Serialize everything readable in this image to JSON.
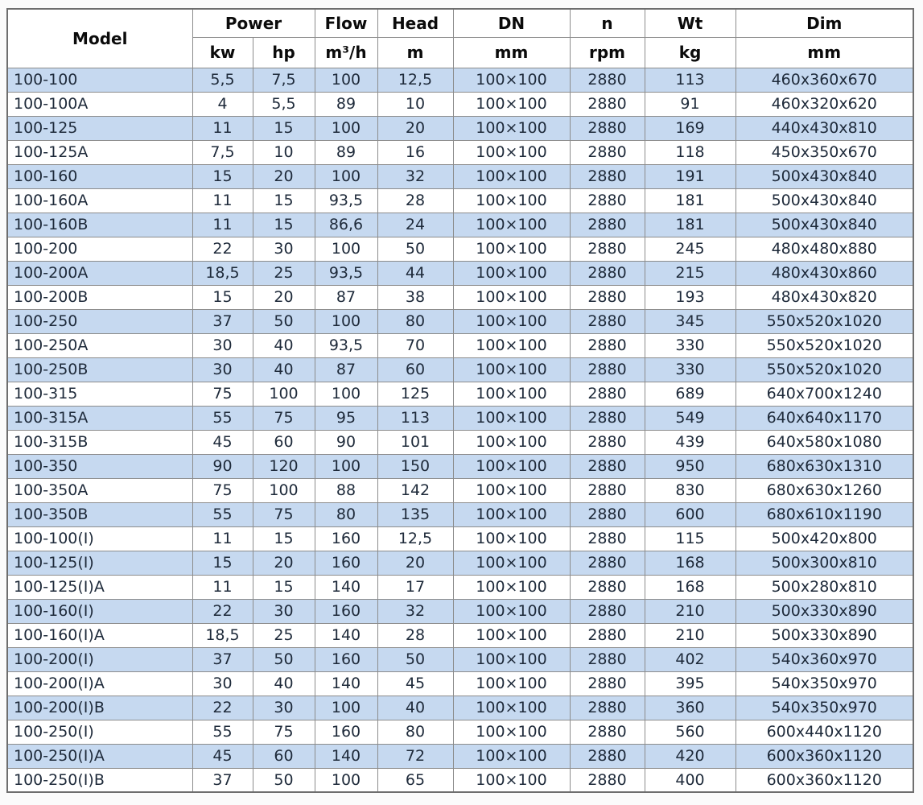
{
  "page": {
    "background": "#f9f9f9"
  },
  "colors": {
    "alt_row_blue": "#c6d9f0",
    "base_row_white": "#ffffff",
    "grid_line": "#8c8c8c",
    "outer_border": "#6e6e6e",
    "header_text": "#0b0b0b",
    "data_text": "#1e2a3a"
  },
  "table": {
    "header": {
      "model": "Model",
      "power": "Power",
      "flow": "Flow",
      "head": "Head",
      "dn": "DN",
      "n": "n",
      "wt": "Wt",
      "dim": "Dim",
      "units": {
        "kw": "kw",
        "hp": "hp",
        "flow": "m³/h",
        "head": "m",
        "dn": "mm",
        "n": "rpm",
        "wt": "kg",
        "dim": "mm"
      }
    },
    "rows": [
      [
        "100-100",
        "5,5",
        "7,5",
        "100",
        "12,5",
        "100×100",
        "2880",
        "113",
        "460x360x670"
      ],
      [
        "100-100A",
        "4",
        "5,5",
        "89",
        "10",
        "100×100",
        "2880",
        "91",
        "460x320x620"
      ],
      [
        "100-125",
        "11",
        "15",
        "100",
        "20",
        "100×100",
        "2880",
        "169",
        "440x430x810"
      ],
      [
        "100-125A",
        "7,5",
        "10",
        "89",
        "16",
        "100×100",
        "2880",
        "118",
        "450x350x670"
      ],
      [
        "100-160",
        "15",
        "20",
        "100",
        "32",
        "100×100",
        "2880",
        "191",
        "500x430x840"
      ],
      [
        "100-160A",
        "11",
        "15",
        "93,5",
        "28",
        "100×100",
        "2880",
        "181",
        "500x430x840"
      ],
      [
        "100-160B",
        "11",
        "15",
        "86,6",
        "24",
        "100×100",
        "2880",
        "181",
        "500x430x840"
      ],
      [
        "100-200",
        "22",
        "30",
        "100",
        "50",
        "100×100",
        "2880",
        "245",
        "480x480x880"
      ],
      [
        "100-200A",
        "18,5",
        "25",
        "93,5",
        "44",
        "100×100",
        "2880",
        "215",
        "480x430x860"
      ],
      [
        "100-200B",
        "15",
        "20",
        "87",
        "38",
        "100×100",
        "2880",
        "193",
        "480x430x820"
      ],
      [
        "100-250",
        "37",
        "50",
        "100",
        "80",
        "100×100",
        "2880",
        "345",
        "550x520x1020"
      ],
      [
        "100-250A",
        "30",
        "40",
        "93,5",
        "70",
        "100×100",
        "2880",
        "330",
        "550x520x1020"
      ],
      [
        "100-250B",
        "30",
        "40",
        "87",
        "60",
        "100×100",
        "2880",
        "330",
        "550x520x1020"
      ],
      [
        "100-315",
        "75",
        "100",
        "100",
        "125",
        "100×100",
        "2880",
        "689",
        "640x700x1240"
      ],
      [
        "100-315A",
        "55",
        "75",
        "95",
        "113",
        "100×100",
        "2880",
        "549",
        "640x640x1170"
      ],
      [
        "100-315B",
        "45",
        "60",
        "90",
        "101",
        "100×100",
        "2880",
        "439",
        "640x580x1080"
      ],
      [
        "100-350",
        "90",
        "120",
        "100",
        "150",
        "100×100",
        "2880",
        "950",
        "680x630x1310"
      ],
      [
        "100-350A",
        "75",
        "100",
        "88",
        "142",
        "100×100",
        "2880",
        "830",
        "680x630x1260"
      ],
      [
        "100-350B",
        "55",
        "75",
        "80",
        "135",
        "100×100",
        "2880",
        "600",
        "680x610x1190"
      ],
      [
        "100-100(I)",
        "11",
        "15",
        "160",
        "12,5",
        "100×100",
        "2880",
        "115",
        "500x420x800"
      ],
      [
        "100-125(I)",
        "15",
        "20",
        "160",
        "20",
        "100×100",
        "2880",
        "168",
        "500x300x810"
      ],
      [
        "100-125(I)A",
        "11",
        "15",
        "140",
        "17",
        "100×100",
        "2880",
        "168",
        "500x280x810"
      ],
      [
        "100-160(I)",
        "22",
        "30",
        "160",
        "32",
        "100×100",
        "2880",
        "210",
        "500x330x890"
      ],
      [
        "100-160(I)A",
        "18,5",
        "25",
        "140",
        "28",
        "100×100",
        "2880",
        "210",
        "500x330x890"
      ],
      [
        "100-200(I)",
        "37",
        "50",
        "160",
        "50",
        "100×100",
        "2880",
        "402",
        "540x360x970"
      ],
      [
        "100-200(I)A",
        "30",
        "40",
        "140",
        "45",
        "100×100",
        "2880",
        "395",
        "540x350x970"
      ],
      [
        "100-200(I)B",
        "22",
        "30",
        "100",
        "40",
        "100×100",
        "2880",
        "360",
        "540x350x970"
      ],
      [
        "100-250(I)",
        "55",
        "75",
        "160",
        "80",
        "100×100",
        "2880",
        "560",
        "600x440x1120"
      ],
      [
        "100-250(I)A",
        "45",
        "60",
        "140",
        "72",
        "100×100",
        "2880",
        "420",
        "600x360x1120"
      ],
      [
        "100-250(I)B",
        "37",
        "50",
        "100",
        "65",
        "100×100",
        "2880",
        "400",
        "600x360x1120"
      ]
    ]
  }
}
